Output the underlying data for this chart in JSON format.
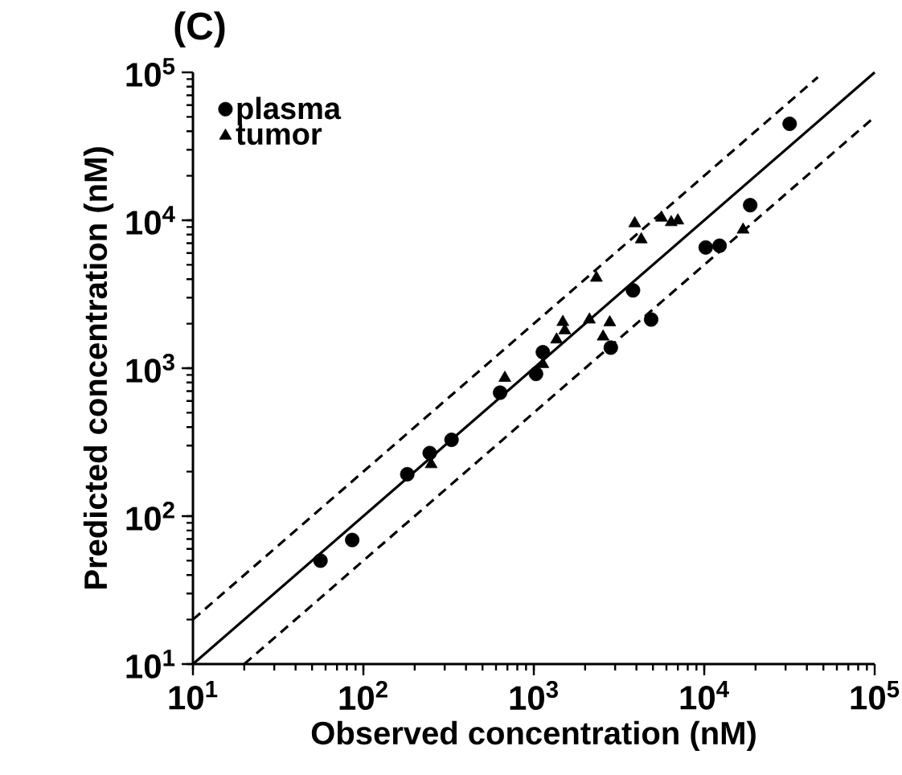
{
  "chart_data": {
    "type": "scatter",
    "title": "(C)",
    "xlabel": "Observed concentration (nM)",
    "ylabel": "Predicted concentration (nM)",
    "log": "xy",
    "legend": "top left",
    "xlim": [
      10,
      100000
    ],
    "ylim": [
      10,
      100000
    ],
    "xticks": [
      {
        "value": 10,
        "label": "10$^{1}$"
      },
      {
        "value": 100,
        "label": "10$^{2}$"
      },
      {
        "value": 1000,
        "label": "10$^{3}$"
      },
      {
        "value": 10000,
        "label": "10$^{4}$"
      },
      {
        "value": 100000,
        "label": "10$^{5}$"
      }
    ],
    "yticks": [
      {
        "value": 10,
        "label": "10$^{1}$"
      },
      {
        "value": 100,
        "label": "10$^{2}$"
      },
      {
        "value": 1000,
        "label": "10$^{3}$"
      },
      {
        "value": 10000,
        "label": "10$^{4}$"
      },
      {
        "value": 100000,
        "label": "10$^{5}$"
      }
    ],
    "series": [
      {
        "name": "plasma",
        "color": "#000000",
        "marker": "circle",
        "x": [
          56,
          86,
          181,
          245,
          329,
          634,
          1030,
          1130,
          2830,
          3820,
          4880,
          10200,
          12300,
          18600,
          31700
        ],
        "values": [
          50,
          69,
          192,
          267,
          328,
          683,
          915,
          1283,
          1377,
          3360,
          2133,
          6550,
          6730,
          12650,
          44900
        ]
      },
      {
        "name": "tumor",
        "color": "#000000",
        "marker": "triangle",
        "x": [
          250,
          676,
          1130,
          1360,
          1480,
          1520,
          2120,
          2330,
          2550,
          2790,
          3910,
          4270,
          5610,
          6400,
          7000,
          16900
        ],
        "values": [
          224,
          859,
          1064,
          1560,
          2050,
          1800,
          2130,
          4080,
          1633,
          2040,
          9530,
          7420,
          10400,
          9690,
          9950,
          8630
        ]
      },
      {
        "type": "line",
        "color": "#000000",
        "line_style": "solid",
        "x": [
          10,
          100000
        ],
        "values": [
          10,
          100000
        ]
      },
      {
        "type": "line",
        "color": "#000000",
        "line_style": "dashed",
        "x": [
          10,
          46400
        ],
        "values": [
          20,
          92800
        ]
      },
      {
        "type": "line",
        "color": "#000000",
        "line_style": "dashed",
        "x": [
          20,
          100000
        ],
        "values": [
          10,
          50000
        ]
      }
    ]
  }
}
